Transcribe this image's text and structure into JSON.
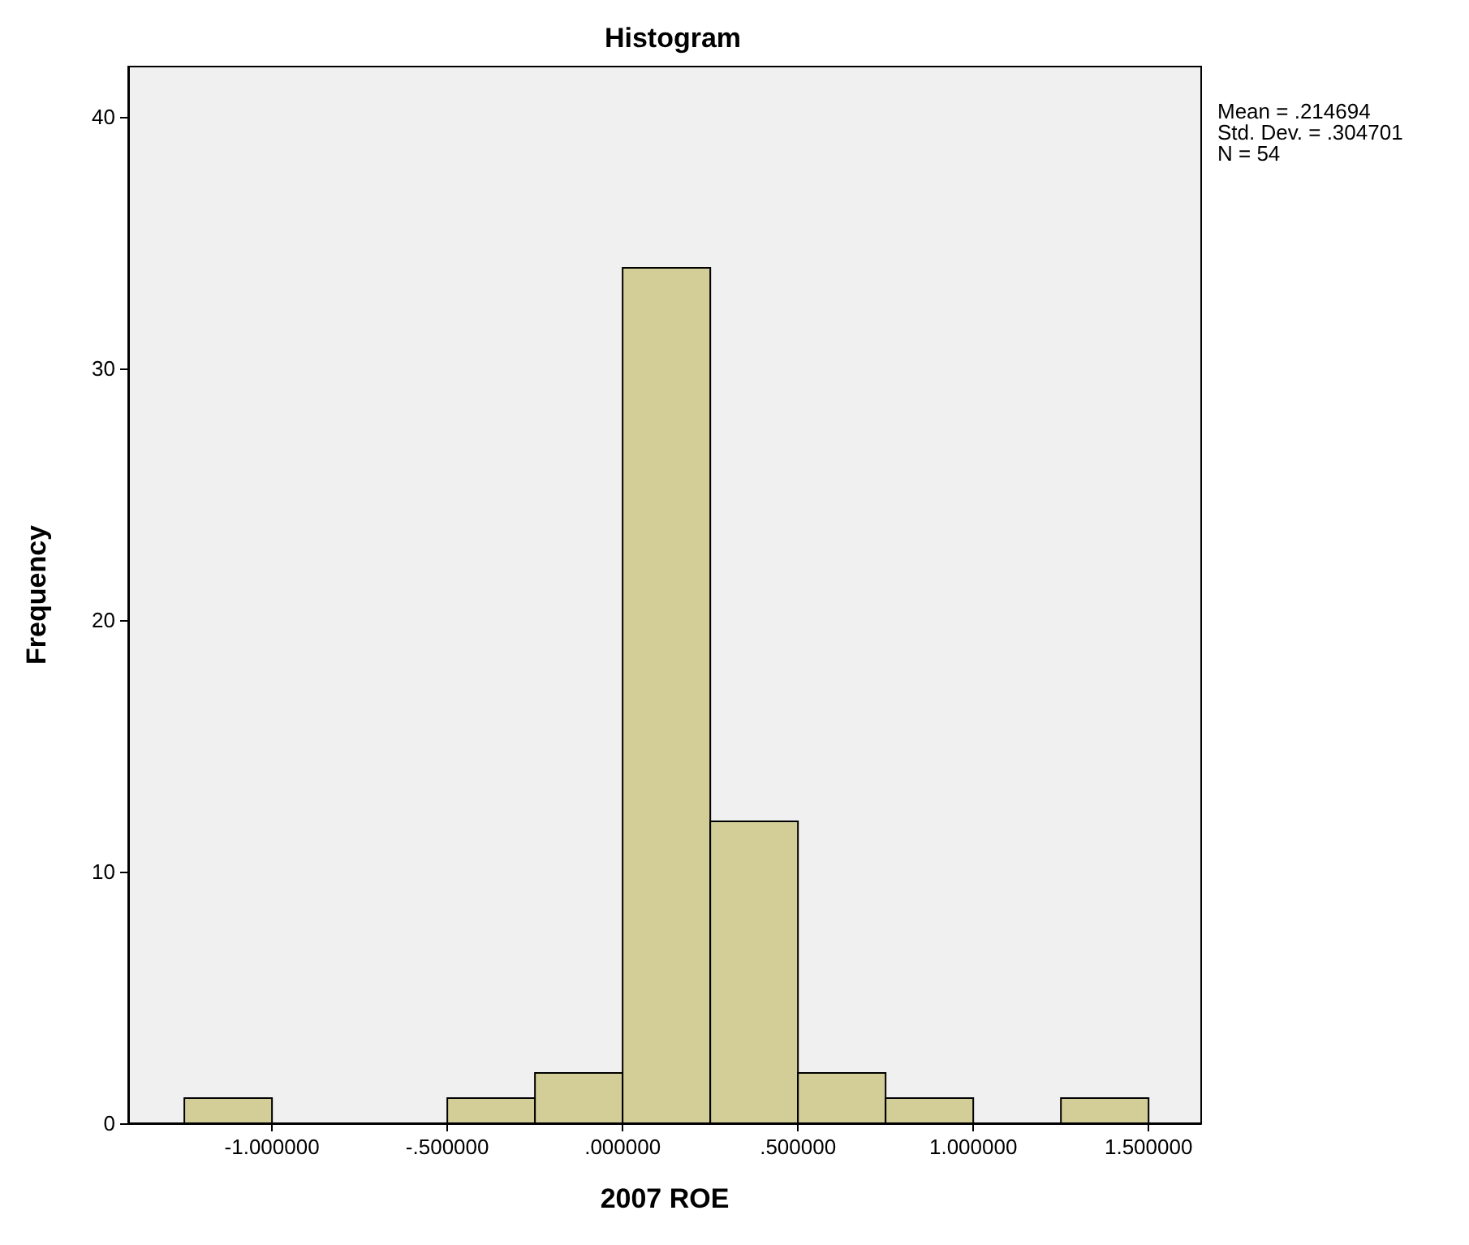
{
  "chart_data": {
    "type": "histogram",
    "title": "Histogram",
    "xlabel": "2007 ROE",
    "ylabel": "Frequency",
    "bins": [
      -1.25,
      -1.0,
      -0.75,
      -0.5,
      -0.25,
      0.0,
      0.25,
      0.5,
      0.75,
      1.0,
      1.25,
      1.5
    ],
    "values": [
      1,
      0,
      0,
      1,
      2,
      34,
      12,
      2,
      1,
      0,
      1
    ],
    "color": "#d3ce97",
    "xlim": [
      -1.41,
      1.65
    ],
    "xticks": [
      {
        "value": -1.0,
        "label": "-1.000000"
      },
      {
        "value": -0.5,
        "label": "-.500000"
      },
      {
        "value": 0.0,
        "label": ".000000"
      },
      {
        "value": 0.5,
        "label": ".500000"
      },
      {
        "value": 1.0,
        "label": "1.000000"
      },
      {
        "value": 1.5,
        "label": "1.500000"
      }
    ],
    "ylim": [
      0,
      42
    ],
    "yticks": [
      0,
      10,
      20,
      30,
      40
    ],
    "grid": false,
    "annotations": [
      "Mean = .214694",
      "Std. Dev. = .304701",
      "N = 54"
    ]
  }
}
